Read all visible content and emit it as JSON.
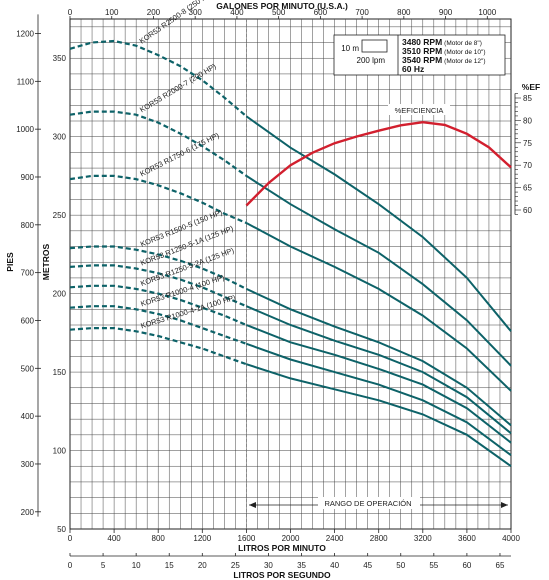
{
  "chart_data": {
    "type": "line",
    "x_bottom": {
      "label": "LITROS POR MINUTO",
      "range": [
        0,
        4000
      ],
      "ticks": [
        "0",
        "400",
        "800",
        "1200",
        "1600",
        "2000",
        "2400",
        "2800",
        "3200",
        "3600",
        "4000"
      ]
    },
    "x_bottom2": {
      "label": "LITROS POR SEGUNDO",
      "ticks": [
        "0",
        "5",
        "10",
        "15",
        "20",
        "25",
        "30",
        "35",
        "40",
        "45",
        "50",
        "55",
        "60",
        "65"
      ]
    },
    "x_top": {
      "label": "GALONES POR MINUTO (U.S.A.)",
      "ticks": [
        "0",
        "100",
        "200",
        "300",
        "400",
        "500",
        "600",
        "700",
        "800",
        "900",
        "1000"
      ]
    },
    "y_left_outer": {
      "label": "PIES",
      "ticks": [
        "200",
        "300",
        "400",
        "500",
        "600",
        "700",
        "800",
        "900",
        "1000",
        "1100",
        "1200"
      ]
    },
    "y_left_inner": {
      "label": "METROS",
      "range": [
        50,
        375
      ],
      "ticks": [
        "50",
        "100",
        "150",
        "200",
        "250",
        "300",
        "350"
      ]
    },
    "y_right": {
      "label": "%EF",
      "ticks": [
        "60",
        "65",
        "70",
        "75",
        "80",
        "85"
      ]
    },
    "legend": {
      "scale_top": "10 m",
      "scale_bottom": "200 lpm",
      "rpm_lines": [
        {
          "rpm": "3480 RPM",
          "motor": "(Motor de 8\")"
        },
        {
          "rpm": "3510 RPM",
          "motor": "(Motor de 10\")"
        },
        {
          "rpm": "3540 RPM",
          "motor": "(Motor de 12\")"
        }
      ],
      "freq": "60 Hz"
    },
    "operating_range_label": "RANGO DE OPERACIÓN",
    "operating_range": [
      1600,
      4000
    ],
    "efficiency_label": "%EFICIENCIA",
    "efficiency_curve": {
      "x": [
        1600,
        1800,
        2000,
        2200,
        2400,
        2600,
        2800,
        3000,
        3200,
        3400,
        3600,
        3800,
        4000
      ],
      "eff": [
        61.0,
        66.0,
        70.0,
        72.8,
        74.9,
        76.4,
        77.7,
        78.9,
        79.6,
        79.0,
        77.0,
        74.0,
        69.5
      ]
    },
    "series": [
      {
        "name": "KOR53 R2500-8 (250 HP)",
        "x": [
          0,
          200,
          400,
          600,
          800,
          1000,
          1200,
          1400,
          1600,
          2000,
          2400,
          2800,
          3200,
          3600,
          4000
        ],
        "y": [
          356,
          360,
          361,
          358,
          352,
          345,
          336,
          325,
          313,
          293,
          276,
          257,
          236,
          210,
          176
        ]
      },
      {
        "name": "KOR53 R2000-7 (200 HP)",
        "x": [
          0,
          200,
          400,
          600,
          800,
          1000,
          1200,
          1400,
          1600,
          2000,
          2400,
          2800,
          3200,
          3600,
          4000
        ],
        "y": [
          314,
          316,
          316,
          314,
          309,
          302,
          294,
          285,
          275,
          257,
          241,
          226,
          206,
          183,
          154
        ]
      },
      {
        "name": "KOR53 R1750-6 (175 HP)",
        "x": [
          0,
          200,
          400,
          600,
          800,
          1000,
          1200,
          1400,
          1600,
          2000,
          2400,
          2800,
          3200,
          3600,
          4000
        ],
        "y": [
          273,
          275,
          275,
          273,
          269,
          264,
          258,
          251,
          245,
          230,
          217,
          203,
          186,
          165,
          138
        ]
      },
      {
        "name": "KOR53 R1500-5 (150 HP)",
        "x": [
          0,
          200,
          400,
          600,
          800,
          1000,
          1200,
          1400,
          1600,
          2000,
          2400,
          2800,
          3200,
          3600,
          4000
        ],
        "y": [
          229,
          230,
          230,
          228,
          225,
          221,
          216,
          210,
          203,
          190,
          179,
          169,
          157,
          140,
          116
        ]
      },
      {
        "name": "KOR53 R1250-5-1A (125 HP)",
        "x": [
          0,
          200,
          400,
          600,
          800,
          1000,
          1200,
          1400,
          1600,
          2000,
          2400,
          2800,
          3200,
          3600,
          4000
        ],
        "y": [
          217,
          218,
          218,
          216,
          213,
          209,
          204,
          198,
          192,
          180,
          170,
          161,
          150,
          134,
          111
        ]
      },
      {
        "name": "KOR53 R1250-5-2A (125 HP)",
        "x": [
          0,
          200,
          400,
          600,
          800,
          1000,
          1200,
          1400,
          1600,
          2000,
          2400,
          2800,
          3200,
          3600,
          4000
        ],
        "y": [
          204,
          205,
          205,
          203,
          200,
          196,
          191,
          186,
          180,
          169,
          161,
          152,
          142,
          127,
          105
        ]
      },
      {
        "name": "KOR53 R1000-4 (100 HP)",
        "x": [
          0,
          200,
          400,
          600,
          800,
          1000,
          1200,
          1400,
          1600,
          2000,
          2400,
          2800,
          3200,
          3600,
          4000
        ],
        "y": [
          191,
          192,
          192,
          190,
          187,
          183,
          178,
          173,
          168,
          158,
          150,
          142,
          132,
          118,
          97
        ]
      },
      {
        "name": "KOR53 R1000-4-1A (100 HP)",
        "x": [
          0,
          200,
          400,
          600,
          800,
          1000,
          1200,
          1400,
          1600,
          2000,
          2400,
          2800,
          3200,
          3600,
          4000
        ],
        "y": [
          177,
          178,
          178,
          176,
          173,
          169,
          165,
          160,
          155,
          146,
          139,
          132,
          123,
          110,
          90
        ]
      }
    ],
    "colors": {
      "curve": "#0d6268",
      "efficiency": "#d21f2e",
      "grid": "#444444",
      "operating_line": "#777777"
    }
  }
}
